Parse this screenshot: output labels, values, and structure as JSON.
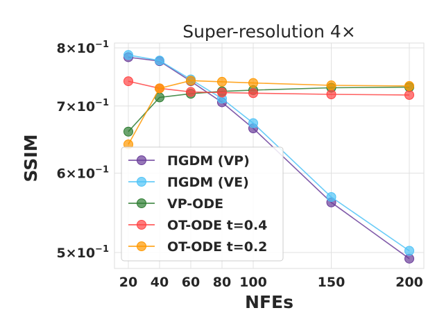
{
  "chart_data": {
    "type": "line",
    "title": "Super-resolution 4×",
    "xlabel": "NFEs",
    "ylabel": "SSIM",
    "yscale": "log",
    "grid": true,
    "legend_position": "lower-left",
    "x": [
      20,
      40,
      60,
      80,
      100,
      150,
      200
    ],
    "xticks": [
      "20",
      "40",
      "60",
      "80",
      "100",
      "150",
      "200"
    ],
    "yticks": [
      {
        "value": 0.8,
        "mantissa": "8",
        "exponent": "−1"
      },
      {
        "value": 0.7,
        "mantissa": "7",
        "exponent": "−1"
      },
      {
        "value": 0.6,
        "mantissa": "6",
        "exponent": "−1"
      },
      {
        "value": 0.5,
        "mantissa": "5",
        "exponent": "−1"
      }
    ],
    "series": [
      {
        "name": "ΠGDM (VP)",
        "color": "#6a3d9a",
        "values": [
          0.783,
          0.776,
          0.741,
          0.706,
          0.665,
          0.561,
          0.493
        ]
      },
      {
        "name": "ΠGDM (VE)",
        "color": "#4fc3f7",
        "values": [
          0.787,
          0.777,
          0.744,
          0.712,
          0.673,
          0.568,
          0.502
        ]
      },
      {
        "name": "VP-ODE",
        "color": "#2e7d32",
        "values": [
          0.66,
          0.714,
          0.72,
          0.724,
          0.726,
          0.73,
          0.731
        ]
      },
      {
        "name": "OT-ODE t=0.4",
        "color": "#ff4444",
        "values": [
          0.741,
          0.729,
          0.723,
          0.722,
          0.721,
          0.719,
          0.718
        ]
      },
      {
        "name": "OT-ODE t=0.2",
        "color": "#ff9800",
        "values": [
          0.641,
          0.729,
          0.742,
          0.74,
          0.738,
          0.734,
          0.733
        ]
      }
    ]
  }
}
